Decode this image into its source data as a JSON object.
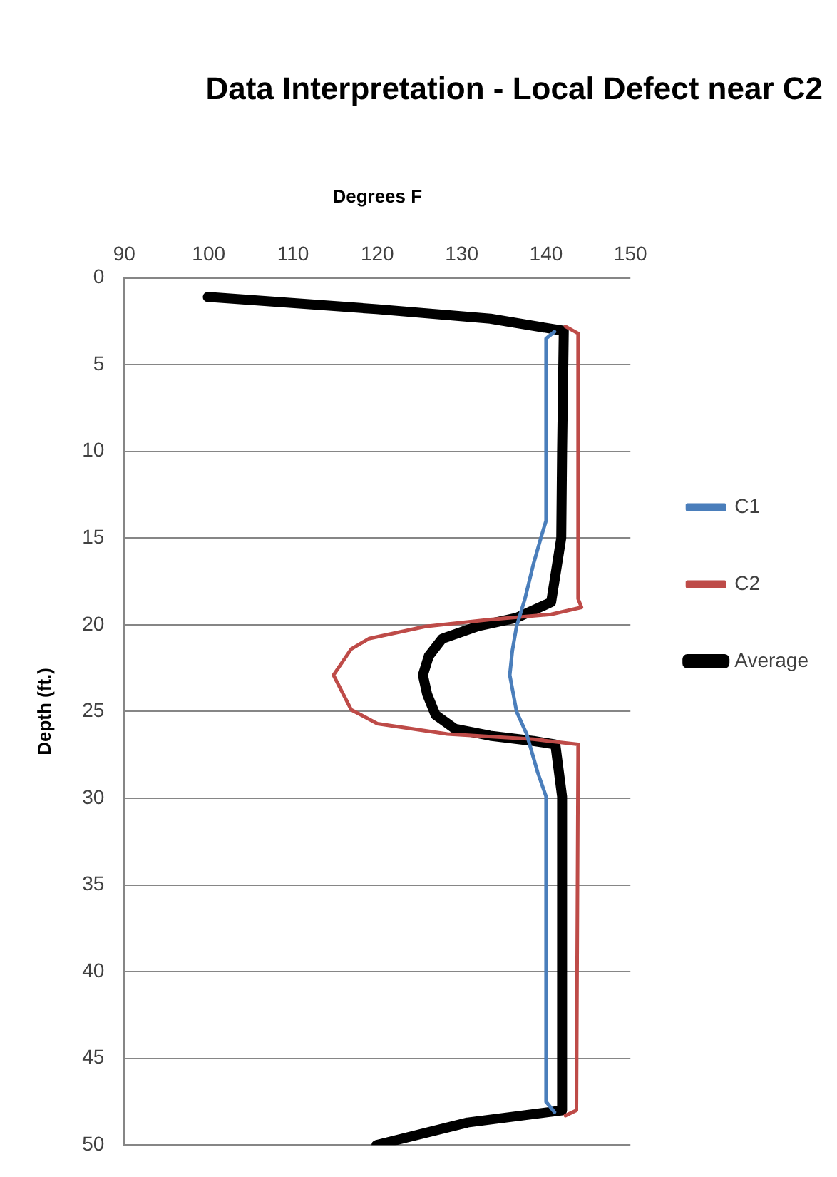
{
  "chart_data": {
    "type": "line",
    "title": "Data Interpretation - Local Defect near C2",
    "xlabel": "Degrees F",
    "ylabel": "Depth (ft.)",
    "xlim": [
      90,
      150
    ],
    "xticks": [
      90,
      100,
      110,
      120,
      130,
      140,
      150
    ],
    "ylim": [
      50,
      0
    ],
    "yticks": [
      0,
      5,
      10,
      15,
      20,
      25,
      30,
      35,
      40,
      45,
      50
    ],
    "grid": "y",
    "legend": "right",
    "marker": "none",
    "line_style": "solid",
    "series": [
      {
        "name": "C1",
        "color": "#4a7ebb",
        "x": [
          141,
          140,
          140,
          139.5,
          138.5,
          137.5,
          136.5,
          136,
          135.7,
          136.5,
          137.7,
          139,
          140,
          140,
          141
        ],
        "values": [
          3.1,
          3.5,
          14,
          14.8,
          16.5,
          18.5,
          20.1,
          21.5,
          22.9,
          25,
          26.3,
          28.5,
          29.9,
          47.5,
          48.1
        ]
      },
      {
        "name": "C2",
        "color": "#be4b48",
        "x": [
          142.3,
          143.8,
          143.8,
          144.2,
          140.6,
          133.4,
          125.7,
          119,
          116.9,
          114.8,
          116.9,
          120,
          128.3,
          138.5,
          143.8,
          143.8,
          143.6,
          142.3
        ],
        "values": [
          2.8,
          3.2,
          18.5,
          19,
          19.4,
          19.7,
          20.1,
          20.8,
          21.4,
          22.9,
          24.9,
          25.7,
          26.3,
          26.6,
          26.9,
          27.6,
          48,
          48.3
        ]
      },
      {
        "name": "Average",
        "color": "#000000",
        "x": [
          99.9,
          119.9,
          133.4,
          142.1,
          141.9,
          141.8,
          140.6,
          136.5,
          131.8,
          127.7,
          126.1,
          125.4,
          125.9,
          126.9,
          129.2,
          133.4,
          138.5,
          141.1,
          141.9,
          141.9,
          130.7,
          119.9
        ],
        "values": [
          1.1,
          1.8,
          2.35,
          3.05,
          10,
          15,
          18.7,
          19.6,
          20.1,
          20.8,
          21.8,
          22.9,
          24,
          25.2,
          26,
          26.4,
          26.7,
          26.9,
          29.9,
          48,
          48.7,
          50
        ]
      }
    ]
  }
}
